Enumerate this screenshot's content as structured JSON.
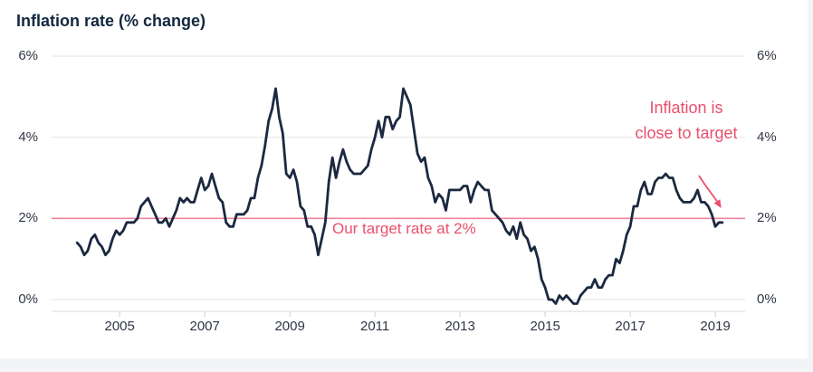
{
  "title": "Inflation rate (% change)",
  "chart_data": {
    "type": "line",
    "title": "Inflation rate (% change)",
    "xlabel": "",
    "ylabel": "",
    "xlim": [
      2003.4,
      2019.7
    ],
    "ylim": [
      0,
      6
    ],
    "grid": "horizontal",
    "legend": "none",
    "x_ticks": [
      {
        "value": 2005,
        "label": "2005"
      },
      {
        "value": 2007,
        "label": "2007"
      },
      {
        "value": 2009,
        "label": "2009"
      },
      {
        "value": 2011,
        "label": "2011"
      },
      {
        "value": 2013,
        "label": "2013"
      },
      {
        "value": 2015,
        "label": "2015"
      },
      {
        "value": 2017,
        "label": "2017"
      },
      {
        "value": 2019,
        "label": "2019"
      }
    ],
    "y_ticks": [
      {
        "value": 0,
        "label": "0%"
      },
      {
        "value": 2,
        "label": "2%"
      },
      {
        "value": 4,
        "label": "4%"
      },
      {
        "value": 6,
        "label": "6%"
      }
    ],
    "target_line": {
      "value": 2,
      "label": "Our target rate at 2%"
    },
    "annotation": {
      "text": "Inflation is close to target"
    },
    "series": [
      {
        "name": "Inflation rate (% change)",
        "frequency": "monthly",
        "start_year": 2004,
        "start_month": 1,
        "end_year": 2019,
        "end_month": 3,
        "values": [
          1.4,
          1.3,
          1.1,
          1.2,
          1.5,
          1.6,
          1.4,
          1.3,
          1.1,
          1.2,
          1.5,
          1.7,
          1.6,
          1.7,
          1.9,
          1.9,
          1.9,
          2.0,
          2.3,
          2.4,
          2.5,
          2.3,
          2.1,
          1.9,
          1.9,
          2.0,
          1.8,
          2.0,
          2.2,
          2.5,
          2.4,
          2.5,
          2.4,
          2.4,
          2.7,
          3.0,
          2.7,
          2.8,
          3.1,
          2.8,
          2.5,
          2.4,
          1.9,
          1.8,
          1.8,
          2.1,
          2.1,
          2.1,
          2.2,
          2.5,
          2.5,
          3.0,
          3.3,
          3.8,
          4.4,
          4.7,
          5.2,
          4.5,
          4.1,
          3.1,
          3.0,
          3.2,
          2.9,
          2.3,
          2.2,
          1.8,
          1.8,
          1.6,
          1.1,
          1.5,
          1.9,
          2.9,
          3.5,
          3.0,
          3.4,
          3.7,
          3.4,
          3.2,
          3.1,
          3.1,
          3.1,
          3.2,
          3.3,
          3.7,
          4.0,
          4.4,
          4.0,
          4.5,
          4.5,
          4.2,
          4.4,
          4.5,
          5.2,
          5.0,
          4.8,
          4.2,
          3.6,
          3.4,
          3.5,
          3.0,
          2.8,
          2.4,
          2.6,
          2.5,
          2.2,
          2.7,
          2.7,
          2.7,
          2.7,
          2.8,
          2.8,
          2.4,
          2.7,
          2.9,
          2.8,
          2.7,
          2.7,
          2.2,
          2.1,
          2.0,
          1.9,
          1.7,
          1.6,
          1.8,
          1.5,
          1.9,
          1.6,
          1.5,
          1.2,
          1.3,
          1.0,
          0.5,
          0.3,
          0.0,
          0.0,
          -0.1,
          0.1,
          0.0,
          0.1,
          0.0,
          -0.1,
          -0.1,
          0.1,
          0.2,
          0.3,
          0.3,
          0.5,
          0.3,
          0.3,
          0.5,
          0.6,
          0.6,
          1.0,
          0.9,
          1.2,
          1.6,
          1.8,
          2.3,
          2.3,
          2.7,
          2.9,
          2.6,
          2.6,
          2.9,
          3.0,
          3.0,
          3.1,
          3.0,
          3.0,
          2.7,
          2.5,
          2.4,
          2.4,
          2.4,
          2.5,
          2.7,
          2.4,
          2.4,
          2.3,
          2.1,
          1.8,
          1.9,
          1.9
        ]
      }
    ],
    "colors": {
      "line": "#1b2940",
      "target_line": "#f2839a",
      "accent_text": "#e8506b",
      "grid": "#e2e4e6",
      "axis": "#d7dadd",
      "tick": "#cbced3",
      "label": "#2e3644",
      "title": "#12273f",
      "card_background": "#ffffff",
      "page_background": "#f3f4f5"
    }
  }
}
